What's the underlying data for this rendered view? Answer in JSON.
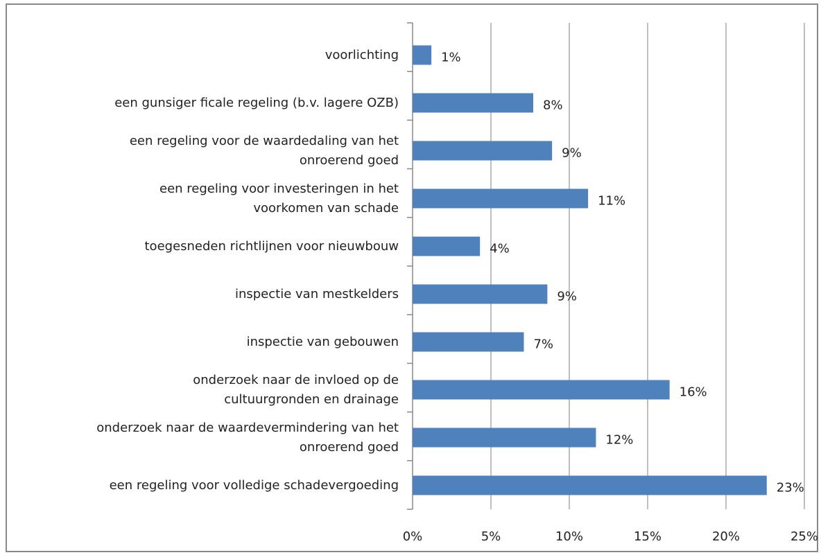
{
  "chart_data": {
    "type": "hbar",
    "categories": [
      "voorlichting",
      "een gunsiger ficale regeling (b.v. lagere OZB)",
      "een regeling voor de waardedaling van het\nonroerend goed",
      "een regeling voor investeringen in het\nvoorkomen van schade",
      "toegesneden richtlijnen voor nieuwbouw",
      "inspectie van mestkelders",
      "inspectie van gebouwen",
      "onderzoek naar de invloed op de\ncultuurgronden en drainage",
      "onderzoek naar de waardevermindering van het\nonroerend goed",
      "een regeling voor volledige schadevergoeding"
    ],
    "values": [
      1.2,
      7.7,
      8.9,
      11.2,
      4.3,
      8.6,
      7.1,
      16.4,
      11.7,
      22.6
    ],
    "value_labels": [
      "1%",
      "8%",
      "9%",
      "11%",
      "4%",
      "9%",
      "7%",
      "16%",
      "12%",
      "23%"
    ],
    "color": "#4f81bd",
    "xlim": [
      0,
      25
    ],
    "xticks": [
      {
        "value": 0,
        "label": "0%"
      },
      {
        "value": 5,
        "label": "5%"
      },
      {
        "value": 10,
        "label": "10%"
      },
      {
        "value": 15,
        "label": "15%"
      },
      {
        "value": 20,
        "label": "20%"
      },
      {
        "value": 25,
        "label": "25%"
      }
    ],
    "grid": true
  }
}
